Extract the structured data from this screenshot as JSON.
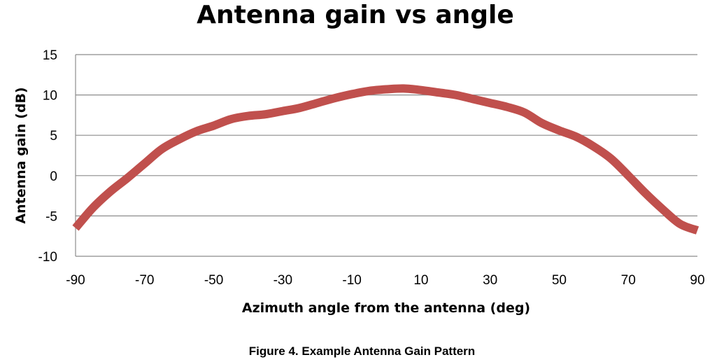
{
  "chart_data": {
    "type": "line",
    "title": "Antenna gain vs angle",
    "xlabel": "Azimuth angle from the antenna (deg)",
    "ylabel": "Antenna gain (dB)",
    "xlim": [
      -90,
      90
    ],
    "ylim": [
      -10,
      15
    ],
    "xticks": [
      -90,
      -70,
      -50,
      -30,
      -10,
      10,
      30,
      50,
      70,
      90
    ],
    "yticks": [
      15,
      10,
      5,
      0,
      -5,
      -10
    ],
    "xtick_labels": [
      "-90",
      "-70",
      "-50",
      "-30",
      "-10",
      "10",
      "30",
      "50",
      "70",
      "90"
    ],
    "ytick_labels": [
      "15",
      "10",
      "5",
      "0",
      "-5",
      "-10"
    ],
    "grid": "horizontal",
    "legend": "none",
    "line_color": "#c0504d",
    "series": [
      {
        "x": [
          -90,
          -85,
          -80,
          -75,
          -70,
          -65,
          -60,
          -55,
          -50,
          -45,
          -40,
          -35,
          -30,
          -25,
          -20,
          -15,
          -10,
          -5,
          0,
          5,
          10,
          15,
          20,
          25,
          30,
          35,
          40,
          45,
          50,
          55,
          60,
          65,
          70,
          75,
          80,
          85,
          90
        ],
        "y": [
          -6.5,
          -4.0,
          -2.0,
          -0.3,
          1.5,
          3.3,
          4.5,
          5.5,
          6.2,
          7.0,
          7.4,
          7.6,
          8.0,
          8.4,
          9.0,
          9.6,
          10.1,
          10.5,
          10.7,
          10.8,
          10.6,
          10.3,
          10.0,
          9.5,
          9.0,
          8.5,
          7.8,
          6.5,
          5.6,
          4.8,
          3.6,
          2.1,
          0.0,
          -2.2,
          -4.2,
          -6.0,
          -6.8
        ]
      }
    ]
  },
  "caption": "Figure 4. Example Antenna Gain Pattern"
}
